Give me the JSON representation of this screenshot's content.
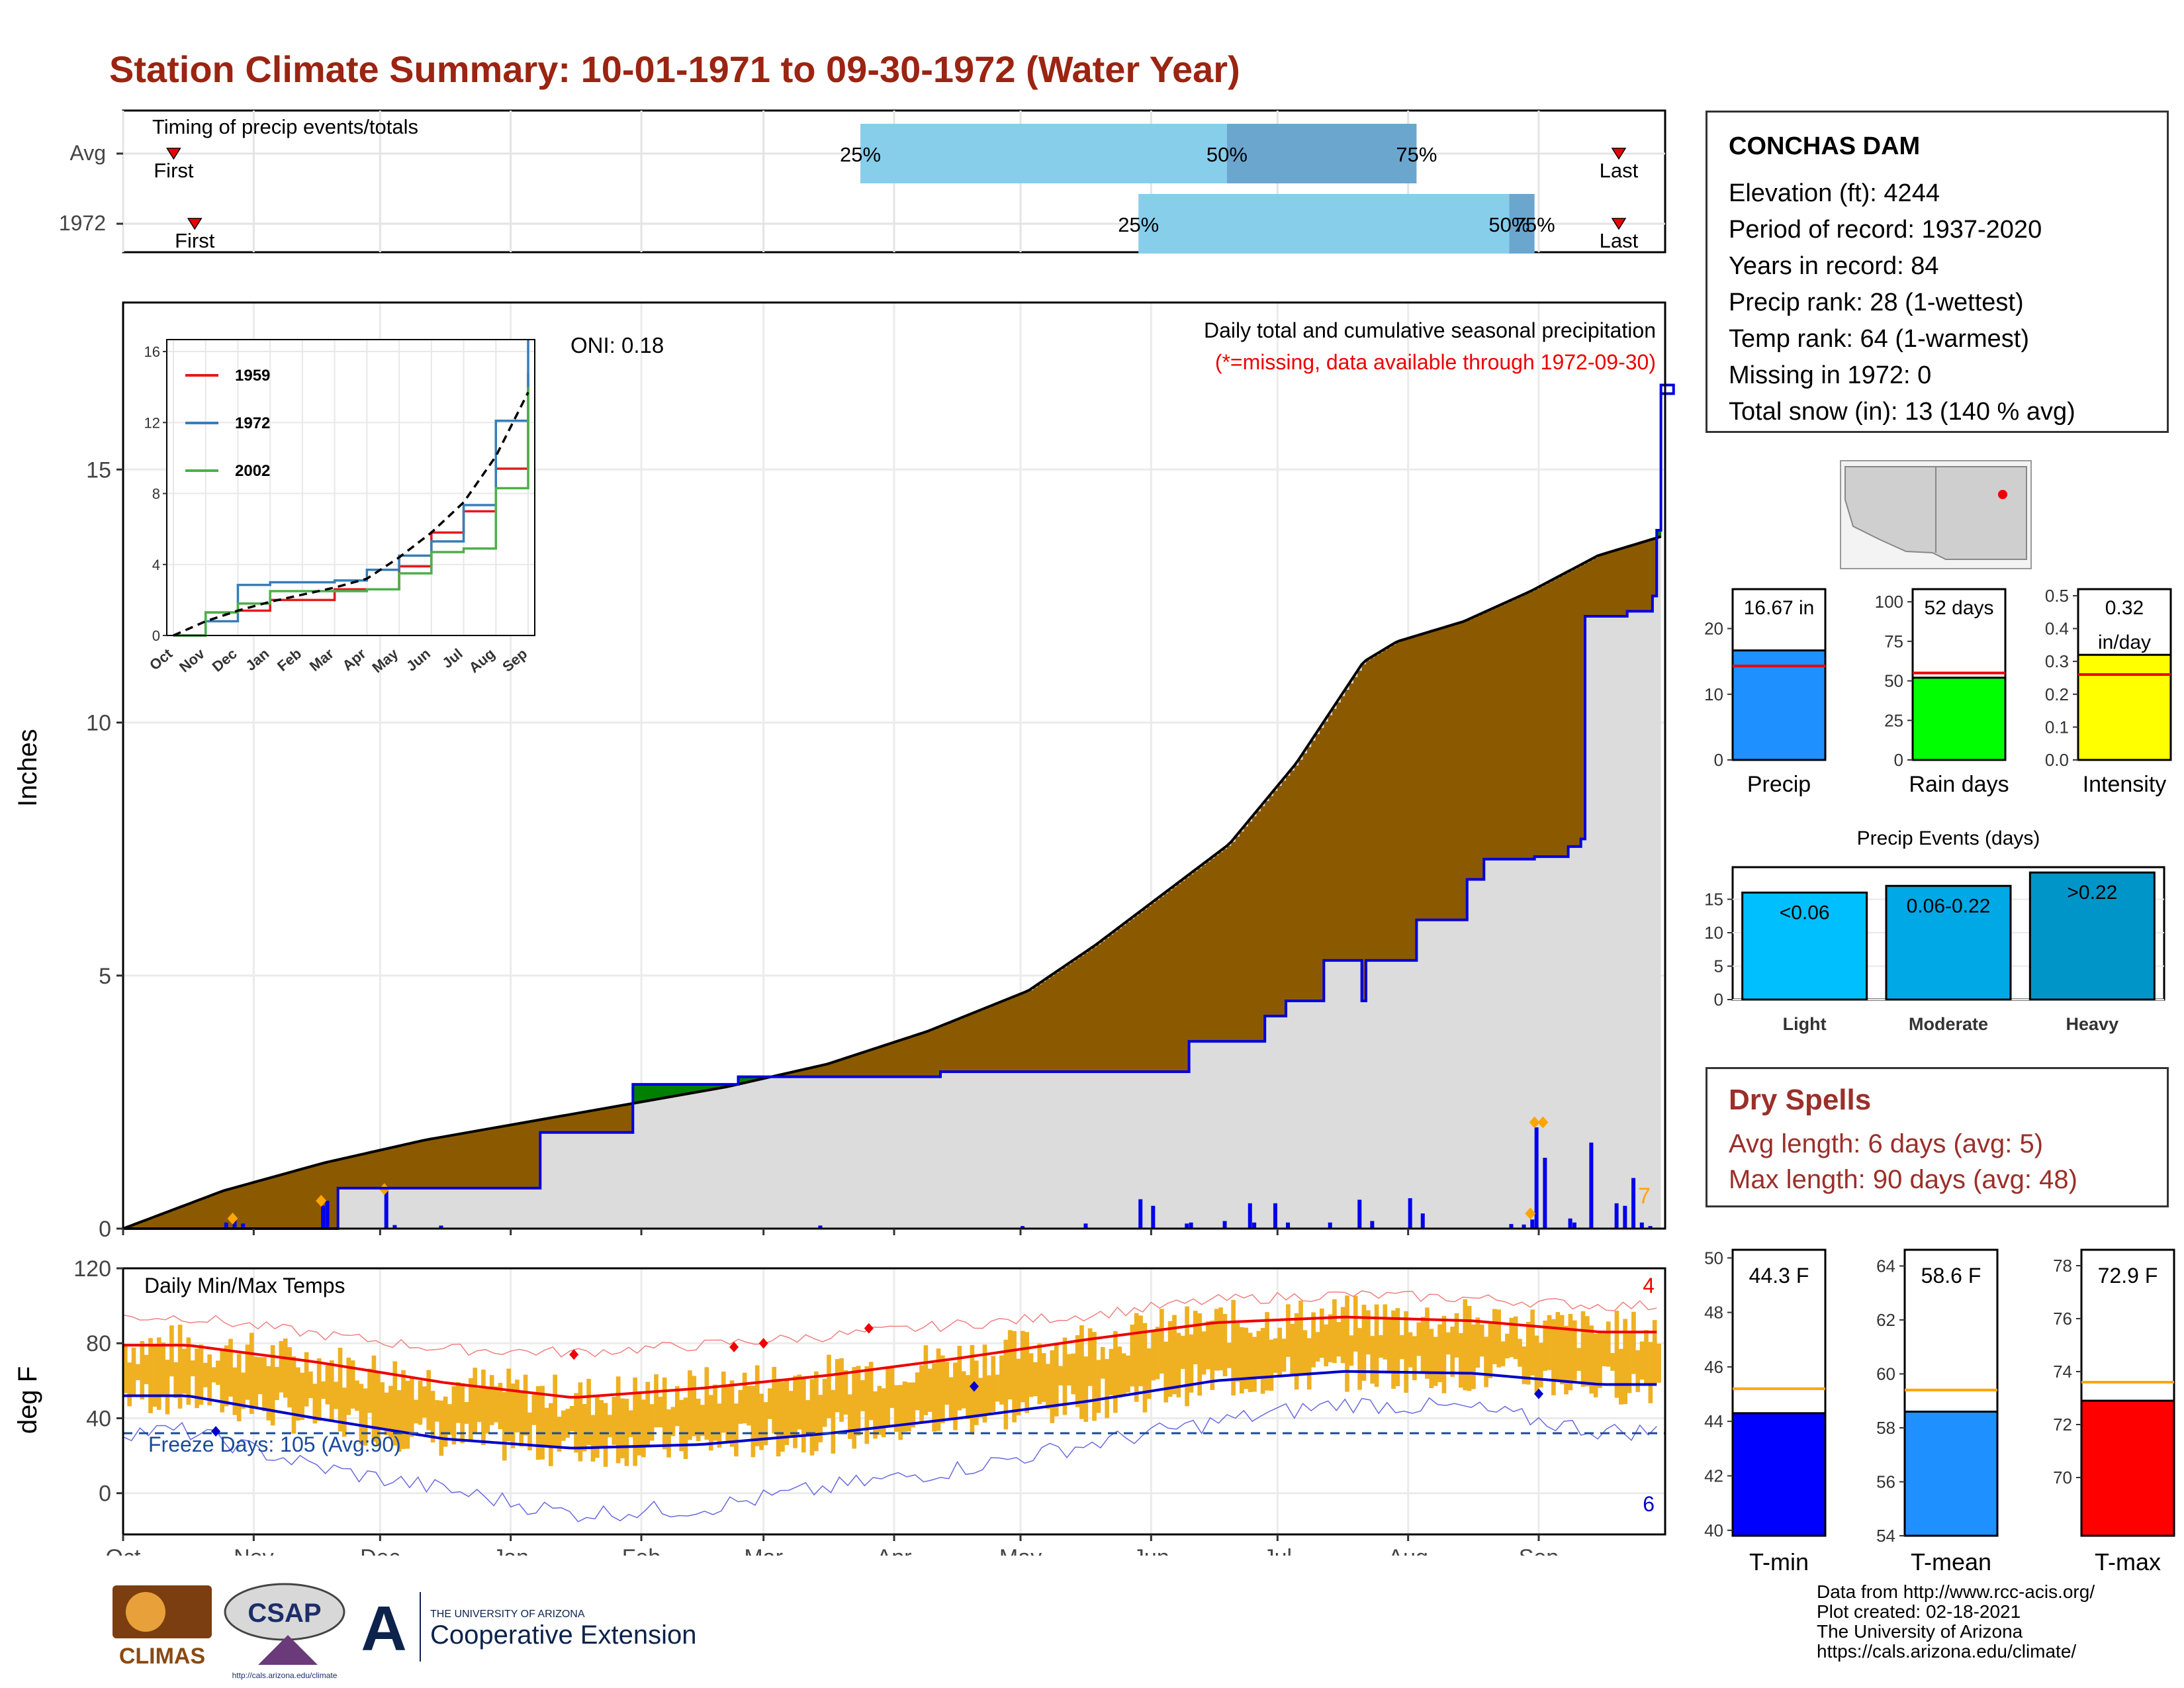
{
  "title": "Station Climate Summary: 10-01-1971 to 09-30-1972 (Water Year)",
  "timing_panel": {
    "label": "Timing of precip events/totals",
    "rows": [
      {
        "name": "Avg",
        "first_label": "First",
        "last_label": "Last",
        "pct_labels": [
          "25%",
          "50%",
          "75%"
        ]
      },
      {
        "name": "1972",
        "first_label": "First",
        "last_label": "Last",
        "pct_labels": [
          "25%",
          "50%",
          "75%"
        ]
      }
    ]
  },
  "precip_panel": {
    "ylabel": "Inches",
    "yticks": [
      "0",
      "5",
      "10",
      "15"
    ],
    "oni": "ONI: 0.18",
    "note_title": "Daily total and cumulative seasonal precipitation",
    "note_missing": "(*=missing, data available through 1972-09-30)",
    "count_label": "7",
    "colors": {
      "cumulative_line": "#0000dd",
      "avg_fill": "#dcdcdc",
      "above_avg": "#008000",
      "below_avg": "#8b5a00",
      "daily_bar": "#0000ee",
      "marker": "#ffa500"
    }
  },
  "inset": {
    "yticks": [
      "0",
      "4",
      "8",
      "12",
      "16"
    ],
    "xticks": [
      "Oct",
      "Nov",
      "Dec",
      "Jan",
      "Feb",
      "Mar",
      "Apr",
      "May",
      "Jun",
      "Jul",
      "Aug",
      "Sep"
    ],
    "legend": [
      {
        "name": "1959",
        "color": "#e41a1c"
      },
      {
        "name": "1972",
        "color": "#377eb8"
      },
      {
        "name": "2002",
        "color": "#4daf4a"
      }
    ]
  },
  "temp_panel": {
    "ylabel": "deg F",
    "yticks": [
      "0",
      "40",
      "80",
      "120"
    ],
    "label": "Daily Min/Max Temps",
    "freeze_label": "Freeze Days: 105 (Avg:90)",
    "count_top": "4",
    "count_bottom": "6",
    "months": [
      "Oct",
      "Nov",
      "Dec",
      "Jan",
      "Feb",
      "Mar",
      "Apr",
      "May",
      "Jun",
      "Jul",
      "Aug",
      "Sep"
    ]
  },
  "station": {
    "name": "CONCHAS DAM",
    "lines": [
      "Elevation (ft): 4244",
      "Period of record: 1937-2020",
      "Years in record: 84",
      "Precip rank: 28 (1-wettest)",
      "Temp rank: 64 (1-warmest)",
      "Missing in 1972: 0",
      "Total snow (in): 13 (140 % avg)"
    ]
  },
  "summary_bars": [
    {
      "label": "Precip",
      "value_label": "16.67 in",
      "value": 16.67,
      "avg": 14.3,
      "ymax": 26,
      "ticks": [
        "0",
        "10",
        "20"
      ],
      "color": "#1e90ff"
    },
    {
      "label": "Rain days",
      "value_label": "52 days",
      "value": 52,
      "avg": 55,
      "ymax": 108,
      "ticks": [
        "0",
        "25",
        "50",
        "75",
        "100"
      ],
      "color": "#00ff00"
    },
    {
      "label": "Intensity",
      "value_label": "0.32",
      "value_label2": "in/day",
      "value": 0.32,
      "avg": 0.26,
      "ymax": 0.52,
      "ticks": [
        "0.0",
        "0.1",
        "0.2",
        "0.3",
        "0.4",
        "0.5"
      ],
      "color": "#ffff00"
    }
  ],
  "precip_events": {
    "title": "Precip Events (days)",
    "ticks": [
      "0",
      "5",
      "10",
      "15"
    ],
    "bars": [
      {
        "category": "Light",
        "bin_label": "<0.06",
        "value": 16,
        "color": "#00bfff"
      },
      {
        "category": "Moderate",
        "bin_label": "0.06-0.22",
        "value": 17,
        "color": "#00a8e6"
      },
      {
        "category": "Heavy",
        "bin_label": ">0.22",
        "value": 19,
        "color": "#0095c8"
      }
    ]
  },
  "dry_spells": {
    "title": "Dry Spells",
    "avg_length": "Avg length: 6 days (avg: 5)",
    "max_length": "Max length: 90 days (avg: 48)"
  },
  "temp_bars": [
    {
      "label": "T-min",
      "value_label": "44.3 F",
      "value": 44.3,
      "avg": 45.2,
      "ymin": 39.8,
      "ymax": 50.3,
      "ticks": [
        "40",
        "42",
        "44",
        "46",
        "48",
        "50"
      ],
      "color": "#0000ff"
    },
    {
      "label": "T-mean",
      "value_label": "58.6 F",
      "value": 58.6,
      "avg": 59.4,
      "ymin": 54,
      "ymax": 64.6,
      "ticks": [
        "54",
        "56",
        "58",
        "60",
        "62",
        "64"
      ],
      "color": "#1e90ff"
    },
    {
      "label": "T-max",
      "value_label": "72.9 F",
      "value": 72.9,
      "avg": 73.6,
      "ymin": 67.8,
      "ymax": 78.6,
      "ticks": [
        "70",
        "72",
        "74",
        "76",
        "78"
      ],
      "color": "#ff0000"
    }
  ],
  "credits": [
    "Data from http://www.rcc-acis.org/",
    "Plot created: 02-18-2021",
    "The University of Arizona",
    "https://cals.arizona.edu/climate/"
  ],
  "logos": {
    "climas": "CLIMAS",
    "csap": "CSAP",
    "csap_url": "http://cals.arizona.edu/climate",
    "ua_line1": "THE UNIVERSITY OF ARIZONA",
    "ua_line2": "Cooperative Extension"
  },
  "chart_data": [
    {
      "type": "bar",
      "title": "Timing of precip events/totals",
      "categories": [
        "Avg",
        "1972"
      ],
      "series": [
        {
          "name": "25%",
          "values": [
            "2022-03-24",
            "2022-05-29"
          ]
        },
        {
          "name": "50%",
          "values": [
            "2022-06-19",
            "2022-08-25"
          ]
        },
        {
          "name": "75%",
          "values": [
            "2022-08-03",
            "2022-08-31"
          ]
        },
        {
          "name": "First",
          "values": [
            "2022-10-13",
            "2022-10-18"
          ]
        },
        {
          "name": "Last",
          "values": [
            "2022-09-20",
            "2022-09-20"
          ]
        }
      ]
    },
    {
      "type": "area",
      "title": "Daily total and cumulative seasonal precipitation",
      "ylabel": "Inches",
      "ylim": [
        0,
        18.3
      ],
      "cumulative_1972": [
        [
          0,
          0
        ],
        [
          50,
          0
        ],
        [
          51,
          0.8
        ],
        [
          98,
          0.8
        ],
        [
          99,
          1.9
        ],
        [
          120,
          1.9
        ],
        [
          121,
          2.85
        ],
        [
          145,
          2.85
        ],
        [
          146,
          3.0
        ],
        [
          193,
          3.0
        ],
        [
          194,
          3.1
        ],
        [
          252,
          3.1
        ],
        [
          253,
          3.7
        ],
        [
          270,
          3.7
        ],
        [
          271,
          4.2
        ],
        [
          275,
          4.2
        ],
        [
          276,
          4.5
        ],
        [
          294,
          4.5
        ],
        [
          295,
          5.3
        ],
        [
          306,
          5.3
        ],
        [
          307,
          6.1
        ],
        [
          285,
          5.3
        ],
        [
          318,
          6.1
        ],
        [
          319,
          6.9
        ],
        [
          322,
          6.9
        ],
        [
          323,
          7.3
        ],
        [
          334,
          7.3
        ],
        [
          335,
          7.35
        ],
        [
          343,
          7.55
        ],
        [
          346,
          7.7
        ],
        [
          347,
          12.1
        ],
        [
          356,
          12.1
        ],
        [
          357,
          12.2
        ],
        [
          363,
          12.5
        ],
        [
          364,
          13.8
        ],
        [
          365,
          16.3
        ],
        [
          368,
          16.5
        ],
        [
          365,
          16.67
        ]
      ],
      "average_cumulative": [
        [
          0,
          0
        ],
        [
          30,
          0.75
        ],
        [
          60,
          1.3
        ],
        [
          90,
          1.75
        ],
        [
          120,
          2.1
        ],
        [
          150,
          2.45
        ],
        [
          180,
          2.8
        ],
        [
          210,
          3.25
        ],
        [
          240,
          3.9
        ],
        [
          270,
          4.7
        ],
        [
          290,
          5.6
        ],
        [
          310,
          6.6
        ],
        [
          330,
          7.6
        ],
        [
          350,
          9.2
        ],
        [
          360,
          10.2
        ],
        [
          370,
          11.2
        ],
        [
          380,
          11.6
        ],
        [
          400,
          12.0
        ],
        [
          420,
          12.6
        ],
        [
          440,
          13.3
        ],
        [
          460,
          13.7
        ]
      ],
      "daily_bars": [
        [
          24,
          0.12
        ],
        [
          26,
          0.2
        ],
        [
          28,
          0.1
        ],
        [
          47,
          0.45
        ],
        [
          48,
          0.55
        ],
        [
          62,
          0.75
        ],
        [
          64,
          0.07
        ],
        [
          75,
          0.06
        ],
        [
          165,
          0.06
        ],
        [
          213,
          0.05
        ],
        [
          228,
          0.1
        ],
        [
          241,
          0.58
        ],
        [
          244,
          0.45
        ],
        [
          252,
          0.1
        ],
        [
          253,
          0.12
        ],
        [
          261,
          0.15
        ],
        [
          267,
          0.5
        ],
        [
          268,
          0.12
        ],
        [
          273,
          0.5
        ],
        [
          276,
          0.12
        ],
        [
          286,
          0.12
        ],
        [
          293,
          0.57
        ],
        [
          296,
          0.15
        ],
        [
          305,
          0.6
        ],
        [
          308,
          0.3
        ],
        [
          329,
          0.09
        ],
        [
          332,
          0.08
        ],
        [
          334,
          0.18
        ],
        [
          335,
          2.0
        ],
        [
          337,
          1.4
        ],
        [
          343,
          0.2
        ],
        [
          344,
          0.12
        ],
        [
          348,
          1.7
        ],
        [
          354,
          0.5
        ],
        [
          356,
          0.45
        ],
        [
          358,
          1.0
        ],
        [
          360,
          0.12
        ],
        [
          362,
          0.05
        ]
      ]
    },
    {
      "type": "line",
      "title": "Inset cumulative precipitation",
      "x": [
        "Oct",
        "Nov",
        "Dec",
        "Jan",
        "Feb",
        "Mar",
        "Apr",
        "May",
        "Jun",
        "Jul",
        "Aug",
        "Sep"
      ],
      "ylim": [
        0,
        16.3
      ],
      "series": [
        {
          "name": "1959",
          "values": [
            0,
            1.3,
            1.4,
            2.0,
            2.0,
            2.6,
            2.6,
            3.9,
            5.8,
            7.0,
            9.4,
            14.8
          ]
        },
        {
          "name": "1972",
          "values": [
            0,
            0.8,
            2.85,
            3.0,
            3.0,
            3.1,
            3.7,
            4.5,
            5.3,
            7.35,
            12.1,
            16.67
          ]
        },
        {
          "name": "2002",
          "values": [
            0,
            1.3,
            1.8,
            2.5,
            2.5,
            2.5,
            2.6,
            3.5,
            4.7,
            4.9,
            8.3,
            14.0
          ]
        },
        {
          "name": "average",
          "values": [
            0,
            0.8,
            1.4,
            1.9,
            2.3,
            2.7,
            3.2,
            4.4,
            5.8,
            7.5,
            10.1,
            13.7
          ]
        }
      ]
    },
    {
      "type": "line",
      "title": "Daily Min/Max Temps",
      "ylabel": "deg F",
      "ylim": [
        -22,
        120
      ],
      "x": [
        "Oct",
        "Nov",
        "Dec",
        "Jan",
        "Feb",
        "Mar",
        "Apr",
        "May",
        "Jun",
        "Jul",
        "Aug",
        "Sep"
      ],
      "series": [
        {
          "name": "avg max",
          "values": [
            79,
            70,
            59,
            51,
            56,
            63,
            72,
            82,
            91,
            94,
            92,
            86
          ]
        },
        {
          "name": "avg min",
          "values": [
            52,
            40,
            29,
            24,
            26,
            32,
            40,
            49,
            60,
            65,
            64,
            58
          ]
        },
        {
          "name": "record max",
          "values": [
            94,
            85,
            77,
            75,
            79,
            84,
            90,
            95,
            103,
            106,
            104,
            100
          ]
        },
        {
          "name": "record min",
          "values": [
            33,
            14,
            2,
            -11,
            -8,
            3,
            13,
            26,
            38,
            48,
            45,
            33
          ]
        }
      ],
      "freeze_threshold": 32
    }
  ]
}
